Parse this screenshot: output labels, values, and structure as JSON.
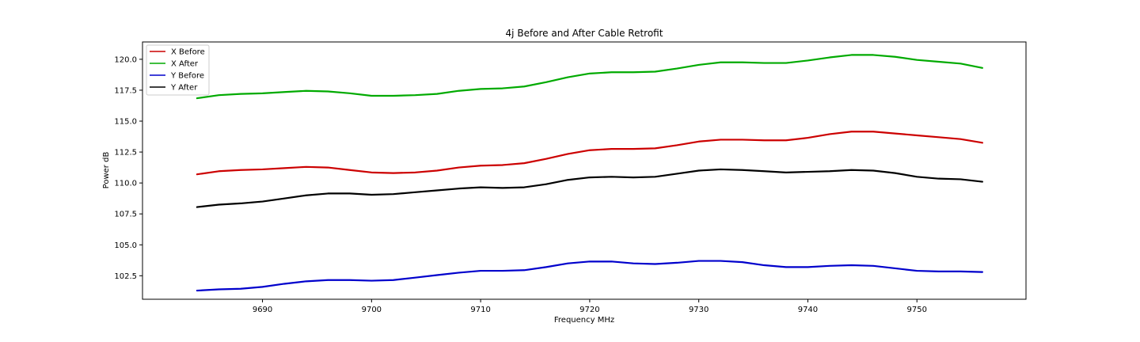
{
  "chart_data": {
    "type": "line",
    "title": "4j Before and After Cable Retrofit",
    "xlabel": "Frequency MHz",
    "ylabel": "Power dB",
    "xlim": [
      9679,
      9760
    ],
    "ylim": [
      100.6,
      121.4
    ],
    "xticks": [
      9690,
      9700,
      9710,
      9720,
      9730,
      9740,
      9750
    ],
    "yticks": [
      102.5,
      105.0,
      107.5,
      110.0,
      112.5,
      115.0,
      117.5,
      120.0
    ],
    "grid": false,
    "legend_position": "top-left",
    "series": [
      {
        "name": "X Before",
        "color": "#cc0000",
        "x": [
          9684,
          9686,
          9688,
          9690,
          9692,
          9694,
          9696,
          9698,
          9700,
          9702,
          9704,
          9706,
          9708,
          9710,
          9712,
          9714,
          9716,
          9718,
          9720,
          9722,
          9724,
          9726,
          9728,
          9730,
          9732,
          9734,
          9736,
          9738,
          9740,
          9742,
          9744,
          9746,
          9748,
          9750,
          9752,
          9754,
          9756
        ],
        "y": [
          110.7,
          110.95,
          111.05,
          111.1,
          111.2,
          111.3,
          111.25,
          111.05,
          110.85,
          110.8,
          110.85,
          111.0,
          111.25,
          111.4,
          111.45,
          111.6,
          111.95,
          112.35,
          112.65,
          112.75,
          112.75,
          112.8,
          113.05,
          113.35,
          113.5,
          113.5,
          113.45,
          113.45,
          113.65,
          113.95,
          114.15,
          114.15,
          114.0,
          113.85,
          113.7,
          113.55,
          113.25
        ]
      },
      {
        "name": "X After",
        "color": "#00aa00",
        "x": [
          9684,
          9686,
          9688,
          9690,
          9692,
          9694,
          9696,
          9698,
          9700,
          9702,
          9704,
          9706,
          9708,
          9710,
          9712,
          9714,
          9716,
          9718,
          9720,
          9722,
          9724,
          9726,
          9728,
          9730,
          9732,
          9734,
          9736,
          9738,
          9740,
          9742,
          9744,
          9746,
          9748,
          9750,
          9752,
          9754,
          9756
        ],
        "y": [
          116.85,
          117.1,
          117.2,
          117.25,
          117.35,
          117.45,
          117.4,
          117.25,
          117.05,
          117.05,
          117.1,
          117.2,
          117.45,
          117.6,
          117.65,
          117.8,
          118.15,
          118.55,
          118.85,
          118.95,
          118.95,
          119.0,
          119.25,
          119.55,
          119.75,
          119.75,
          119.7,
          119.7,
          119.9,
          120.15,
          120.35,
          120.35,
          120.2,
          119.95,
          119.8,
          119.65,
          119.3
        ]
      },
      {
        "name": "Y Before",
        "color": "#0000cc",
        "x": [
          9684,
          9686,
          9688,
          9690,
          9692,
          9694,
          9696,
          9698,
          9700,
          9702,
          9704,
          9706,
          9708,
          9710,
          9712,
          9714,
          9716,
          9718,
          9720,
          9722,
          9724,
          9726,
          9728,
          9730,
          9732,
          9734,
          9736,
          9738,
          9740,
          9742,
          9744,
          9746,
          9748,
          9750,
          9752,
          9754,
          9756
        ],
        "y": [
          101.3,
          101.4,
          101.45,
          101.6,
          101.85,
          102.05,
          102.15,
          102.15,
          102.1,
          102.15,
          102.35,
          102.55,
          102.75,
          102.9,
          102.9,
          102.95,
          103.2,
          103.5,
          103.65,
          103.65,
          103.5,
          103.45,
          103.55,
          103.7,
          103.7,
          103.6,
          103.35,
          103.2,
          103.2,
          103.3,
          103.35,
          103.3,
          103.1,
          102.9,
          102.85,
          102.85,
          102.8
        ]
      },
      {
        "name": "Y After",
        "color": "#000000",
        "x": [
          9684,
          9686,
          9688,
          9690,
          9692,
          9694,
          9696,
          9698,
          9700,
          9702,
          9704,
          9706,
          9708,
          9710,
          9712,
          9714,
          9716,
          9718,
          9720,
          9722,
          9724,
          9726,
          9728,
          9730,
          9732,
          9734,
          9736,
          9738,
          9740,
          9742,
          9744,
          9746,
          9748,
          9750,
          9752,
          9754,
          9756
        ],
        "y": [
          108.05,
          108.25,
          108.35,
          108.5,
          108.75,
          109.0,
          109.15,
          109.15,
          109.05,
          109.1,
          109.25,
          109.4,
          109.55,
          109.65,
          109.6,
          109.65,
          109.9,
          110.25,
          110.45,
          110.5,
          110.45,
          110.5,
          110.75,
          111.0,
          111.1,
          111.05,
          110.95,
          110.85,
          110.9,
          110.95,
          111.05,
          111.0,
          110.8,
          110.5,
          110.35,
          110.3,
          110.1
        ]
      }
    ]
  }
}
